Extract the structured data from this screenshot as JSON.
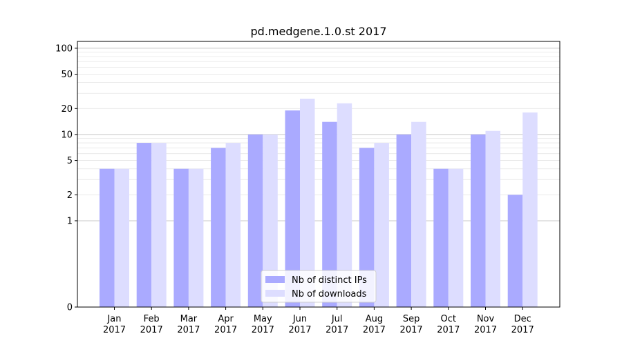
{
  "chart_data": {
    "type": "bar",
    "title": "pd.medgene.1.0.st 2017",
    "xlabel": "",
    "ylabel": "",
    "y_scale": "symlog",
    "ylim": [
      0,
      120
    ],
    "y_ticks": [
      0,
      1,
      2,
      5,
      10,
      20,
      50,
      100
    ],
    "y_tick_labels": [
      "0",
      "1",
      "2",
      "5",
      "10",
      "20",
      "50",
      "100"
    ],
    "grid": "horizontal",
    "legend_position": "bottom-center",
    "categories": [
      {
        "month": "Jan",
        "year": "2017"
      },
      {
        "month": "Feb",
        "year": "2017"
      },
      {
        "month": "Mar",
        "year": "2017"
      },
      {
        "month": "Apr",
        "year": "2017"
      },
      {
        "month": "May",
        "year": "2017"
      },
      {
        "month": "Jun",
        "year": "2017"
      },
      {
        "month": "Jul",
        "year": "2017"
      },
      {
        "month": "Aug",
        "year": "2017"
      },
      {
        "month": "Sep",
        "year": "2017"
      },
      {
        "month": "Oct",
        "year": "2017"
      },
      {
        "month": "Nov",
        "year": "2017"
      },
      {
        "month": "Dec",
        "year": "2017"
      }
    ],
    "series": [
      {
        "name": "Nb of distinct IPs",
        "color": "#aaaaff",
        "values": [
          4,
          8,
          4,
          7,
          10,
          19,
          14,
          7,
          10,
          4,
          10,
          2
        ]
      },
      {
        "name": "Nb of downloads",
        "color": "#ddddff",
        "values": [
          4,
          8,
          4,
          8,
          10,
          26,
          23,
          8,
          14,
          4,
          11,
          18
        ]
      }
    ]
  }
}
